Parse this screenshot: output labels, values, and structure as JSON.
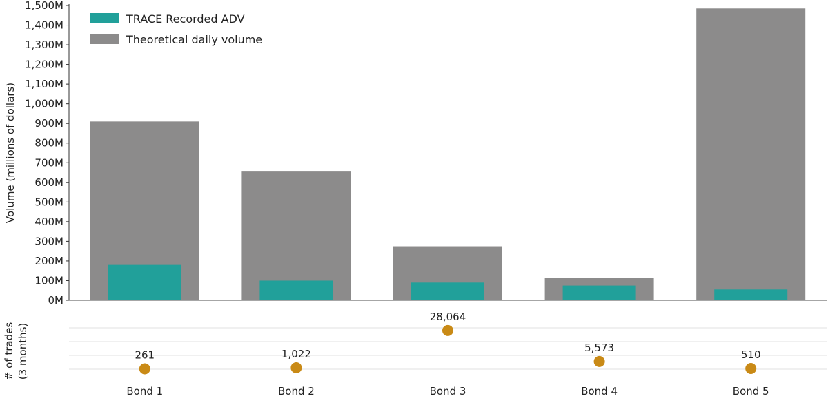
{
  "chart_data": [
    {
      "type": "bar",
      "categories": [
        "Bond 1",
        "Bond 2",
        "Bond 3",
        "Bond 4",
        "Bond 5"
      ],
      "series": [
        {
          "name": "Theoretical daily volume",
          "values": [
            910,
            655,
            275,
            115,
            1485
          ],
          "color": "#8c8b8b"
        },
        {
          "name": "TRACE Recorded ADV",
          "values": [
            180,
            100,
            90,
            75,
            55
          ],
          "color": "#21a09a"
        }
      ],
      "ylabel": "Volume (millions of dollars)",
      "ylim": [
        0,
        1500
      ],
      "yticks": [
        "0M",
        "100M",
        "200M",
        "300M",
        "400M",
        "500M",
        "600M",
        "700M",
        "800M",
        "900M",
        "1,000M",
        "1,100M",
        "1,200M",
        "1,300M",
        "1,400M",
        "1,500M"
      ],
      "legend": [
        {
          "label": "TRACE Recorded ADV",
          "color": "#21a09a"
        },
        {
          "label": "Theoretical daily volume",
          "color": "#8c8b8b"
        }
      ],
      "legend_position": "top-left",
      "grid": false
    },
    {
      "type": "scatter",
      "categories": [
        "Bond 1",
        "Bond 2",
        "Bond 3",
        "Bond 4",
        "Bond 5"
      ],
      "values": [
        261,
        1022,
        28064,
        5573,
        510
      ],
      "labels": [
        "261",
        "1,022",
        "28,064",
        "5,573",
        "510"
      ],
      "ylabel": "# of trades (3 months)",
      "ylabel_lines": [
        "# of trades",
        "(3 months)"
      ],
      "ylim": [
        0,
        30000
      ],
      "grid": true,
      "color": "#c98a16"
    }
  ]
}
